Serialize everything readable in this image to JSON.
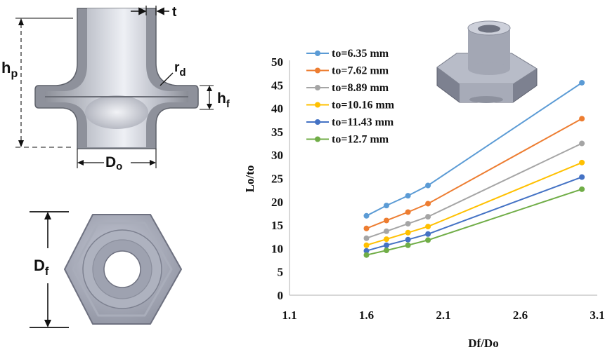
{
  "diagram": {
    "labels": {
      "t": "t",
      "rd_main": "r",
      "rd_sub": "d",
      "hp_main": "h",
      "hp_sub": "p",
      "hf_main": "h",
      "hf_sub": "f",
      "do_main": "D",
      "do_sub": "o",
      "df_main": "D",
      "df_sub": "f"
    }
  },
  "chart_data": {
    "type": "line",
    "title": "",
    "xlabel": "Df/Do",
    "ylabel": "Lo/to",
    "xlim": [
      1.1,
      3.1
    ],
    "ylim": [
      0,
      50
    ],
    "xticks": [
      1.1,
      1.6,
      2.1,
      2.6,
      3.1
    ],
    "xtick_labels": [
      "1.1",
      "1.6",
      "2.1",
      "2.6",
      "3.1"
    ],
    "yticks": [
      0,
      5,
      10,
      15,
      20,
      25,
      30,
      35,
      40,
      45,
      50
    ],
    "ytick_labels": [
      "0",
      "5",
      "10",
      "15",
      "20",
      "25",
      "30",
      "35",
      "40",
      "45",
      "50"
    ],
    "grid": false,
    "legend_position": "top-left",
    "x": [
      1.6,
      1.73,
      1.87,
      2.0,
      3.0
    ],
    "series": [
      {
        "name": "to=6.35 mm",
        "color": "#5B9BD5",
        "values": [
          17.0,
          19.2,
          21.3,
          23.5,
          45.5
        ]
      },
      {
        "name": "to=7.62 mm",
        "color": "#ED7D31",
        "values": [
          14.3,
          16.0,
          17.8,
          19.6,
          37.8
        ]
      },
      {
        "name": "to=8.89 mm",
        "color": "#A5A5A5",
        "values": [
          12.2,
          13.7,
          15.3,
          16.8,
          32.5
        ]
      },
      {
        "name": "to=10.16 mm",
        "color": "#FFC000",
        "values": [
          10.7,
          12.0,
          13.4,
          14.7,
          28.4
        ]
      },
      {
        "name": "to=11.43 mm",
        "color": "#4472C4",
        "values": [
          9.5,
          10.7,
          11.9,
          13.1,
          25.3
        ]
      },
      {
        "name": "to=12.7 mm",
        "color": "#70AD47",
        "values": [
          8.6,
          9.6,
          10.7,
          11.8,
          22.7
        ]
      }
    ]
  }
}
